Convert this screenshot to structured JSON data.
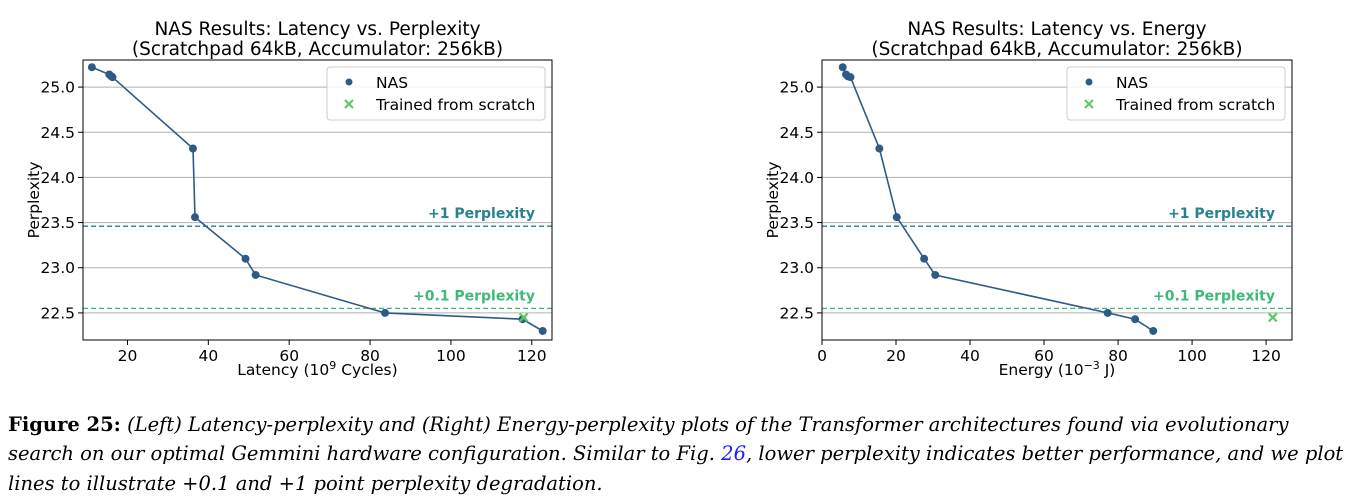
{
  "caption": {
    "label": "Figure 25:",
    "text_before_ref": "(Left) Latency-perplexity and (Right) Energy-perplexity plots of the Transformer architectures found via evolutionary search on our optimal Gemmini hardware configuration. Similar to Fig.",
    "ref": "26",
    "text_after_ref": ", lower perplexity indicates better performance, and we plot lines to illustrate +0.1 and +1 point perplexity degradation."
  },
  "colors": {
    "nas": "#2e5a88",
    "scratch": "#5dc863",
    "plus_one_line": "#2c7c8a",
    "plus_one_text": "#26828e",
    "plus_tenth": "#3eb978",
    "grid": "#b0b0b0",
    "caption_ref": "#1a1aff"
  },
  "chart_data": [
    {
      "type": "scatter",
      "title_line1": "NAS Results: Latency vs. Perplexity",
      "title_line2": "(Scratchpad 64kB, Accumulator: 256kB)",
      "xlabel_prefix": "Latency (10",
      "xlabel_sup": "9",
      "xlabel_suffix": " Cycles)",
      "ylabel": "Perplexity",
      "xlim": [
        9,
        125
      ],
      "ylim": [
        22.2,
        25.3
      ],
      "xticks": [
        20,
        40,
        60,
        80,
        100,
        120
      ],
      "yticks": [
        22.5,
        23.0,
        23.5,
        24.0,
        24.5,
        25.0
      ],
      "ytick_labels": [
        "22.5",
        "23.0",
        "23.5",
        "24.0",
        "24.5",
        "25.0"
      ],
      "grid": "horizontal",
      "legend_position": "top-right",
      "series": [
        {
          "name": "NAS",
          "marker": "circle",
          "connected": true,
          "x": [
            11.2,
            15.5,
            16.0,
            16.3,
            36.2,
            36.7,
            49.2,
            51.7,
            83.7,
            117.7,
            122.7
          ],
          "y": [
            25.22,
            25.14,
            25.12,
            25.11,
            24.32,
            23.56,
            23.1,
            22.92,
            22.5,
            22.43,
            22.3
          ]
        },
        {
          "name": "Trained from scratch",
          "marker": "x",
          "connected": false,
          "x": [
            118.0
          ],
          "y": [
            22.45
          ]
        }
      ],
      "reference_lines": [
        {
          "label": "+1 Perplexity",
          "y": 23.46,
          "color_key": "plus_one"
        },
        {
          "label": "+0.1 Perplexity",
          "y": 22.55,
          "color_key": "plus_tenth"
        }
      ]
    },
    {
      "type": "scatter",
      "title_line1": "NAS Results: Latency vs. Energy",
      "title_line2": "(Scratchpad 64kB, Accumulator: 256kB)",
      "xlabel_prefix": "Energy (10",
      "xlabel_sup": "−3",
      "xlabel_suffix": " J)",
      "ylabel": "Perplexity",
      "xlim": [
        0,
        127
      ],
      "ylim": [
        22.2,
        25.3
      ],
      "xticks": [
        0,
        20,
        40,
        60,
        80,
        100,
        120
      ],
      "yticks": [
        22.5,
        23.0,
        23.5,
        24.0,
        24.5,
        25.0
      ],
      "ytick_labels": [
        "22.5",
        "23.0",
        "23.5",
        "24.0",
        "24.5",
        "25.0"
      ],
      "grid": "horizontal",
      "legend_position": "top-right",
      "series": [
        {
          "name": "NAS",
          "marker": "circle",
          "connected": true,
          "x": [
            5.6,
            6.5,
            7.0,
            7.7,
            15.5,
            20.2,
            27.6,
            30.6,
            77.2,
            84.6,
            89.5
          ],
          "y": [
            25.22,
            25.14,
            25.12,
            25.11,
            24.32,
            23.56,
            23.1,
            22.92,
            22.5,
            22.43,
            22.3
          ]
        },
        {
          "name": "Trained from scratch",
          "marker": "x",
          "connected": false,
          "x": [
            121.8
          ],
          "y": [
            22.45
          ]
        }
      ],
      "reference_lines": [
        {
          "label": "+1 Perplexity",
          "y": 23.46,
          "color_key": "plus_one"
        },
        {
          "label": "+0.1 Perplexity",
          "y": 22.55,
          "color_key": "plus_tenth"
        }
      ]
    }
  ]
}
